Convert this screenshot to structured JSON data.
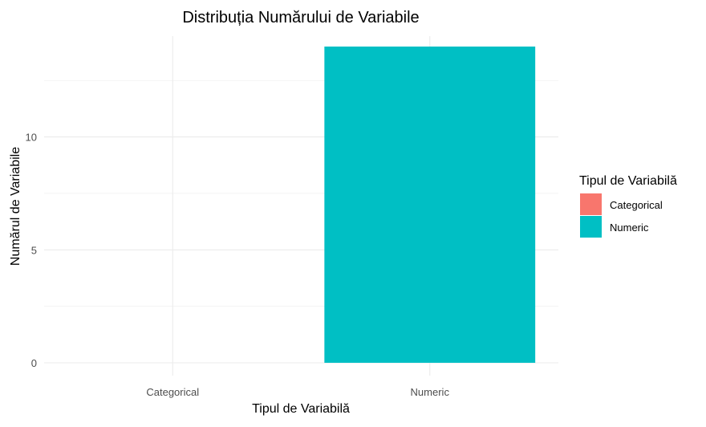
{
  "chart_data": {
    "type": "bar",
    "title": "Distribuția Numărului de Variabile",
    "xlabel": "Tipul de Variabilă",
    "ylabel": "Numărul de Variabile",
    "categories": [
      "Categorical",
      "Numeric"
    ],
    "values": [
      0,
      14
    ],
    "colors": [
      "#F8766D",
      "#00BFC4"
    ],
    "ylim": [
      0,
      14
    ],
    "yticks": [
      0,
      5,
      10
    ],
    "grid": true,
    "legend": {
      "title": "Tipul de Variabilă",
      "position": "right",
      "entries": [
        "Categorical",
        "Numeric"
      ]
    }
  }
}
